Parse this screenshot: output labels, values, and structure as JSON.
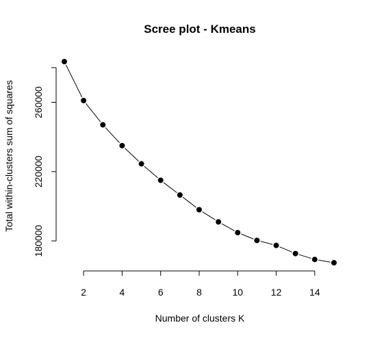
{
  "chart_data": {
    "type": "line",
    "title": "Scree plot - Kmeans",
    "xlabel": "Number of clusters K",
    "ylabel": "Total within-clusters sum of squares",
    "x": [
      1,
      2,
      3,
      4,
      5,
      6,
      7,
      8,
      9,
      10,
      11,
      12,
      13,
      14,
      15
    ],
    "series": [
      {
        "values": [
          283500,
          261000,
          247000,
          235000,
          224500,
          215000,
          206500,
          198000,
          191000,
          184800,
          180300,
          177400,
          172700,
          169300,
          167400
        ]
      }
    ],
    "x_ticks": [
      "2",
      "4",
      "6",
      "8",
      "10",
      "12",
      "14"
    ],
    "y_ticks": [
      "180000",
      "220000",
      "260000"
    ],
    "xlim": [
      1,
      15
    ],
    "ylim": [
      167400,
      283500
    ],
    "grid": false,
    "legend": "none",
    "markers": "filled-circle",
    "line_style": "solid",
    "color": "#000000"
  }
}
